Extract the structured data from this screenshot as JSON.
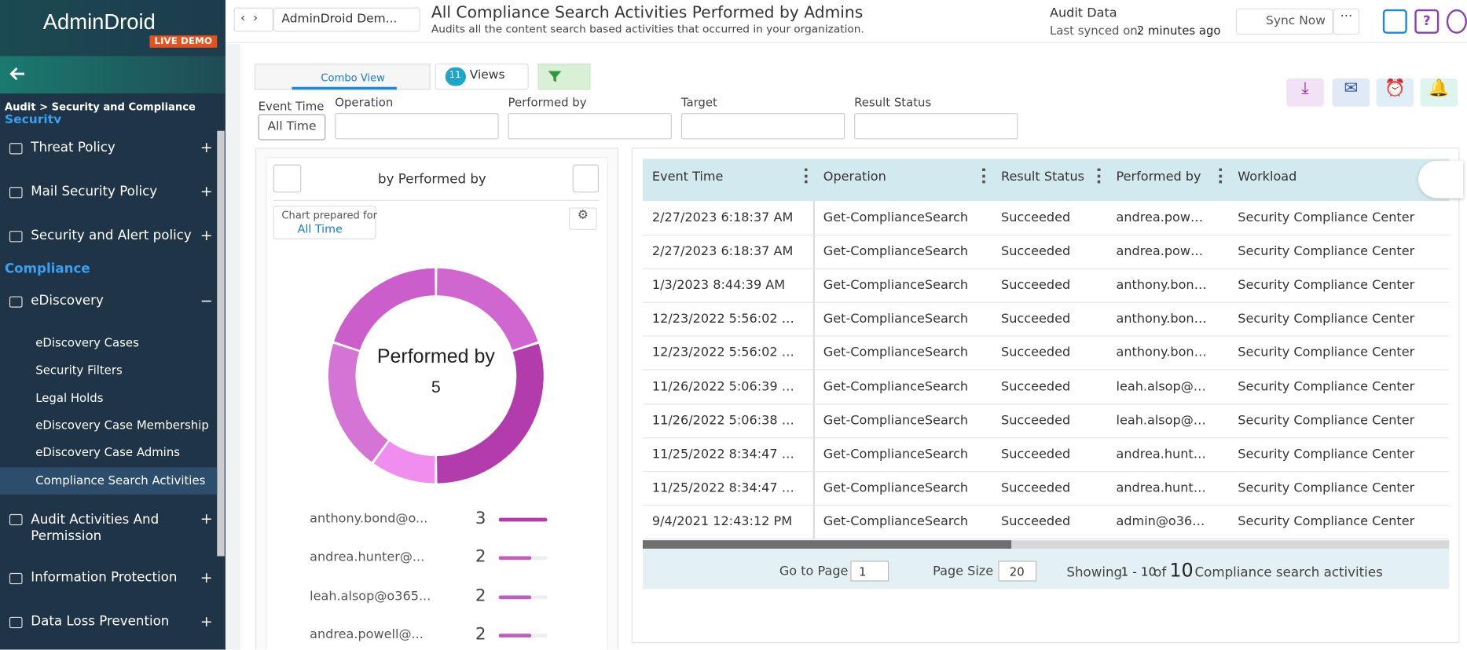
{
  "sidebar": {
    "brand": "AdminDroid",
    "badge": "LIVE DEMO",
    "breadcrumb": "Audit > Security and Compliance",
    "section_partial": "Security",
    "top_items": [
      {
        "label": "Threat Policy",
        "toggle": "+"
      },
      {
        "label": "Mail Security Policy",
        "toggle": "+"
      },
      {
        "label": "Security and Alert policy",
        "toggle": "+"
      }
    ],
    "compliance_heading": "Compliance",
    "ediscovery": {
      "label": "eDiscovery",
      "toggle": "−"
    },
    "sub_items": [
      "eDiscovery Cases",
      "Security Filters",
      "Legal Holds",
      "eDiscovery Case Membership",
      "eDiscovery Case Admins",
      "Compliance Search Activities"
    ],
    "bottom_items": [
      {
        "label": "Audit Activities And Permission",
        "toggle": "+"
      },
      {
        "label": "Information Protection",
        "toggle": "+"
      },
      {
        "label": "Data Loss Prevention",
        "toggle": "+"
      }
    ]
  },
  "header": {
    "tenant": "AdminDroid Dem...",
    "title": "All Compliance Search Activities Performed by Admins",
    "subtitle": "Audits all the content search based activities that occurred in your organization.",
    "audit_label": "Audit Data",
    "synced_label": "Last synced on:",
    "synced_value": "2 minutes ago",
    "sync_button": "Sync Now"
  },
  "toolbar": {
    "view": "Combo View",
    "views_count": 11,
    "views_label": "Views"
  },
  "filters": {
    "labels": [
      "Event Time",
      "Operation",
      "Performed by",
      "Target",
      "Result Status"
    ],
    "event_time_value": "All Time"
  },
  "chart_panel": {
    "group_by": "by Performed by",
    "prepared_for": "Chart prepared for",
    "prepared_value": "All Time"
  },
  "chart_data": {
    "type": "donut",
    "center_label": "Performed by",
    "center_value": 5,
    "categories": [
      "anthony.bond@o...",
      "andrea.hunter@...",
      "leah.alsop@o365...",
      "andrea.powell@...",
      null
    ],
    "values": [
      3,
      2,
      2,
      2,
      1
    ],
    "colors": [
      "#b23cab",
      "#d067d0",
      "#cc5ecc",
      "#d474d4",
      "#f08ef0"
    ]
  },
  "table": {
    "columns": [
      "Event Time",
      "Operation",
      "Result Status",
      "Performed by",
      "Workload"
    ],
    "rows": [
      [
        "2/27/2023 6:18:37 AM",
        "Get-ComplianceSearch",
        "Succeeded",
        "andrea.pow…",
        "Security Compliance Center"
      ],
      [
        "2/27/2023 6:18:37 AM",
        "Get-ComplianceSearch",
        "Succeeded",
        "andrea.pow…",
        "Security Compliance Center"
      ],
      [
        "1/3/2023 8:44:39 AM",
        "Get-ComplianceSearch",
        "Succeeded",
        "anthony.bon…",
        "Security Compliance Center"
      ],
      [
        "12/23/2022 5:56:02 …",
        "Get-ComplianceSearch",
        "Succeeded",
        "anthony.bon…",
        "Security Compliance Center"
      ],
      [
        "12/23/2022 5:56:02 …",
        "Get-ComplianceSearch",
        "Succeeded",
        "anthony.bon…",
        "Security Compliance Center"
      ],
      [
        "11/26/2022 5:06:39 …",
        "Get-ComplianceSearch",
        "Succeeded",
        "leah.alsop@…",
        "Security Compliance Center"
      ],
      [
        "11/26/2022 5:06:38 …",
        "Get-ComplianceSearch",
        "Succeeded",
        "leah.alsop@…",
        "Security Compliance Center"
      ],
      [
        "11/25/2022 8:34:47 …",
        "Get-ComplianceSearch",
        "Succeeded",
        "andrea.hunt…",
        "Security Compliance Center"
      ],
      [
        "11/25/2022 8:34:47 …",
        "Get-ComplianceSearch",
        "Succeeded",
        "andrea.hunt…",
        "Security Compliance Center"
      ],
      [
        "9/4/2021 12:43:12 PM",
        "Get-ComplianceSearch",
        "Succeeded",
        "admin@o36…",
        "Security Compliance Center"
      ]
    ]
  },
  "pager": {
    "goto_label": "Go to Page",
    "page": 1,
    "size_label": "Page Size",
    "size": 20,
    "showing": "Showing",
    "range": "1 - 10",
    "of": "of",
    "total": 10,
    "noun": "Compliance search activities"
  }
}
